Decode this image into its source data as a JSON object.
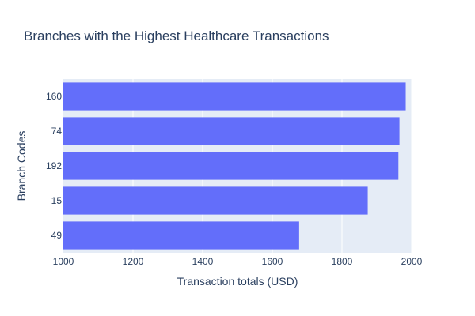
{
  "chart_data": {
    "type": "bar",
    "orientation": "horizontal",
    "title": "Branches with the Highest Healthcare Transactions",
    "xlabel": "Transaction totals (USD)",
    "ylabel": "Branch Codes",
    "categories": [
      "160",
      "74",
      "192",
      "15",
      "49"
    ],
    "values": [
      1983,
      1965,
      1962,
      1874,
      1677
    ],
    "xlim": [
      1000,
      2000
    ],
    "x_ticks": [
      "1000",
      "1200",
      "1400",
      "1600",
      "1800",
      "2000"
    ],
    "grid": true,
    "bar_color": "#636efa",
    "plot_bg_color": "#e5ecf6"
  }
}
